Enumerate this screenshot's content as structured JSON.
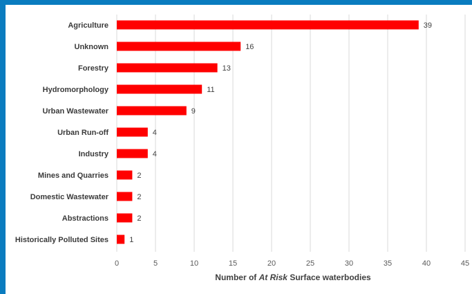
{
  "colors": {
    "frame": "#0a7cbf",
    "background": "#ffffff",
    "bar": "#ff0000",
    "gridline": "#d9d9d9"
  },
  "chart_data": {
    "type": "bar",
    "orientation": "horizontal",
    "categories": [
      "Agriculture",
      "Unknown",
      "Forestry",
      "Hydromorphology",
      "Urban Wastewater",
      "Urban Run-off",
      "Industry",
      "Mines and Quarries",
      "Domestic Wastewater",
      "Abstractions",
      "Historically Polluted Sites"
    ],
    "values": [
      39,
      16,
      13,
      11,
      9,
      4,
      4,
      2,
      2,
      2,
      1
    ],
    "xlim": [
      0,
      45
    ],
    "xticks": [
      0,
      5,
      10,
      15,
      20,
      25,
      30,
      35,
      40,
      45
    ],
    "xlabel_parts": [
      {
        "text": "Number of ",
        "italic": false
      },
      {
        "text": "At Risk",
        "italic": true
      },
      {
        "text": " Surface waterbodies",
        "italic": false
      }
    ],
    "ylabel": "",
    "title": "",
    "grid": "vertical",
    "legend": "none",
    "data_labels": true
  }
}
